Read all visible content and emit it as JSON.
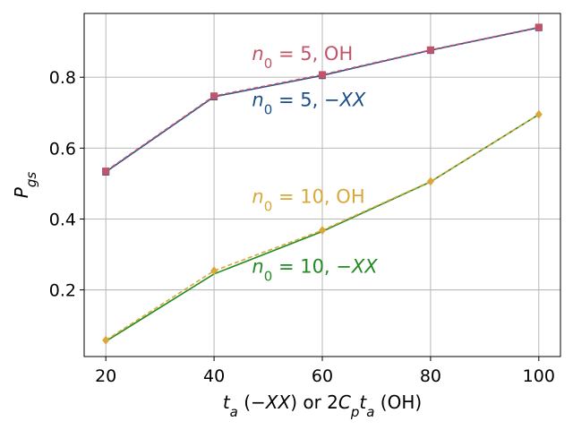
{
  "chart_data": {
    "type": "line",
    "x": [
      20,
      40,
      60,
      80,
      100
    ],
    "xlim": [
      16,
      104
    ],
    "ylim": [
      0.012,
      0.98
    ],
    "xticks": [
      "20",
      "40",
      "60",
      "80",
      "100"
    ],
    "yticks": [
      0.2,
      0.4,
      0.6,
      0.8
    ],
    "ytick_labels": [
      "0.2",
      "0.4",
      "0.6",
      "0.8"
    ],
    "xlabel": {
      "parts": [
        {
          "text": "t",
          "italic": true
        },
        {
          "text": "a",
          "italic": true,
          "sub": true
        },
        {
          "text": " (−"
        },
        {
          "text": "XX",
          "italic": true
        },
        {
          "text": ") or 2"
        },
        {
          "text": "C",
          "italic": true
        },
        {
          "text": "p",
          "italic": true,
          "sub": true
        },
        {
          "text": "t",
          "italic": true
        },
        {
          "text": "a",
          "italic": true,
          "sub": true
        },
        {
          "text": " (OH)"
        }
      ]
    },
    "ylabel": {
      "parts": [
        {
          "text": "P",
          "italic": true
        },
        {
          "text": "gs",
          "italic": true,
          "sub": true
        }
      ]
    },
    "grid": true,
    "series": [
      {
        "name": "n0 = 5, −XX",
        "color": "#1a4f8a",
        "marker": "square",
        "dashed": false,
        "values": [
          0.533,
          0.745,
          0.805,
          0.876,
          0.94
        ]
      },
      {
        "name": "n0 = 5, OH",
        "color": "#c0546a",
        "marker": "square",
        "dashed": true,
        "values": [
          0.535,
          0.747,
          0.807,
          0.877,
          0.941
        ]
      },
      {
        "name": "n0 = 10, −XX",
        "color": "#228b22",
        "marker": "none",
        "dashed": false,
        "values": [
          0.055,
          0.245,
          0.365,
          0.505,
          0.695
        ]
      },
      {
        "name": "n0 = 10, OH",
        "color": "#d8a93a",
        "marker": "diamond",
        "dashed": true,
        "values": [
          0.058,
          0.254,
          0.368,
          0.506,
          0.695
        ]
      }
    ],
    "annotations": [
      {
        "color": "#c0546a",
        "x": 47,
        "y": 0.848,
        "parts": [
          {
            "text": "n",
            "italic": true
          },
          {
            "text": "0",
            "sub": true
          },
          {
            "text": " = 5, OH"
          }
        ]
      },
      {
        "color": "#1a4f8a",
        "x": 47,
        "y": 0.718,
        "parts": [
          {
            "text": "n",
            "italic": true
          },
          {
            "text": "0",
            "sub": true
          },
          {
            "text": " = 5, −"
          },
          {
            "text": "XX",
            "italic": true
          }
        ]
      },
      {
        "color": "#d8a93a",
        "x": 47,
        "y": 0.446,
        "parts": [
          {
            "text": "n",
            "italic": true
          },
          {
            "text": "0",
            "sub": true
          },
          {
            "text": " = 10, OH"
          }
        ]
      },
      {
        "color": "#228b22",
        "x": 47,
        "y": 0.248,
        "parts": [
          {
            "text": "n",
            "italic": true
          },
          {
            "text": "0",
            "sub": true
          },
          {
            "text": " = 10, −"
          },
          {
            "text": "XX",
            "italic": true
          }
        ]
      }
    ]
  }
}
